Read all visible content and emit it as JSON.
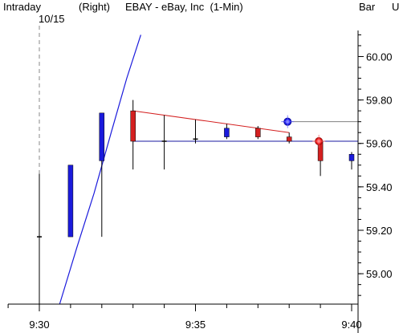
{
  "header": {
    "interval": "Intraday",
    "scale_side": "(Right)",
    "symbol_title": "EBAY - eBay, Inc  (1-Min)",
    "style": "Bar",
    "cut_label": "U",
    "date_marker": "10/15"
  },
  "colors": {
    "up_bar": "#1a1adc",
    "down_bar": "#d42020",
    "wick": "#000000",
    "trend_red": "#d42020",
    "trend_blue": "#1a1aa0",
    "gray_line": "#808080",
    "blue_curve": "#1a1adc",
    "axis": "#000000"
  },
  "chart_data": {
    "type": "candlestick",
    "title": "EBAY - eBay, Inc  (1-Min)",
    "x_ticks": [
      "9:30",
      "9:35",
      "9:40"
    ],
    "y_ticks": [
      "59.00",
      "59.20",
      "59.40",
      "59.60",
      "59.80",
      "60.00"
    ],
    "ylim": [
      58.86,
      60.12
    ],
    "xlim_minutes": [
      -1,
      10.2
    ],
    "candles": [
      {
        "minute": 0,
        "open": 59.17,
        "high": 59.46,
        "low": 58.86,
        "close": 59.17
      },
      {
        "minute": 1,
        "open": 59.17,
        "high": 59.5,
        "low": 59.17,
        "close": 59.5
      },
      {
        "minute": 2,
        "open": 59.52,
        "high": 59.74,
        "low": 59.17,
        "close": 59.74
      },
      {
        "minute": 3,
        "open": 59.75,
        "high": 59.8,
        "low": 59.48,
        "close": 59.61
      },
      {
        "minute": 4,
        "open": 59.61,
        "high": 59.73,
        "low": 59.48,
        "close": 59.61
      },
      {
        "minute": 5,
        "open": 59.62,
        "high": 59.71,
        "low": 59.6,
        "close": 59.62
      },
      {
        "minute": 6,
        "open": 59.63,
        "high": 59.69,
        "low": 59.62,
        "close": 59.67
      },
      {
        "minute": 7,
        "open": 59.67,
        "high": 59.68,
        "low": 59.62,
        "close": 59.63
      },
      {
        "minute": 8,
        "open": 59.63,
        "high": 59.65,
        "low": 59.6,
        "close": 59.61
      },
      {
        "minute": 9,
        "open": 59.61,
        "high": 59.62,
        "low": 59.45,
        "close": 59.52
      },
      {
        "minute": 10,
        "open": 59.52,
        "high": 59.56,
        "low": 59.48,
        "close": 59.55
      }
    ],
    "trendlines": [
      {
        "name": "red",
        "from": {
          "minute": 3,
          "price": 59.75
        },
        "to": {
          "minute": 8,
          "price": 59.65
        }
      },
      {
        "name": "blue",
        "from": {
          "minute": 3,
          "price": 59.61
        },
        "to": {
          "minute": 10.2,
          "price": 59.61
        }
      },
      {
        "name": "gray",
        "from": {
          "minute": 7.8,
          "price": 59.7
        },
        "to": {
          "minute": 10.2,
          "price": 59.7
        }
      }
    ],
    "curve": [
      {
        "minute": 0.65,
        "price": 58.86
      },
      {
        "minute": 1.2,
        "price": 59.12
      },
      {
        "minute": 1.75,
        "price": 59.37
      },
      {
        "minute": 2.3,
        "price": 59.65
      },
      {
        "minute": 2.8,
        "price": 59.9
      },
      {
        "minute": 3.25,
        "price": 60.1
      }
    ],
    "markers": [
      {
        "minute": 7.95,
        "price": 59.7,
        "color": "blue"
      },
      {
        "minute": 8.95,
        "price": 59.61,
        "color": "red"
      }
    ],
    "date_divider_minute": 0
  }
}
